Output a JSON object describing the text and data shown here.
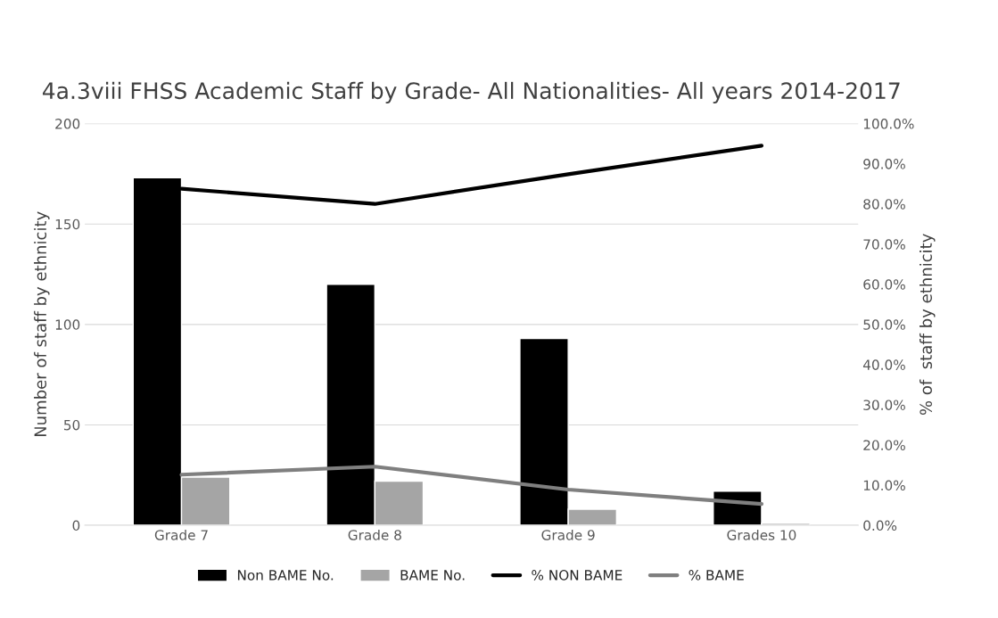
{
  "chart_data": {
    "type": "bar",
    "title": "4a.3viii FHSS Academic Staff by Grade- All Nationalities- All years 2014-2017",
    "ylabel": "Number of staff by ethnicity",
    "y2label": "% of  staff by ethnicity",
    "categories": [
      "Grade 7",
      "Grade 8",
      "Grade 9",
      "Grades 10"
    ],
    "series": [
      {
        "name": "Non BAME No.",
        "color": "#000000",
        "values": [
          173,
          120,
          93,
          17
        ]
      },
      {
        "name": "BAME No.",
        "color": "#a5a5a5",
        "values": [
          24,
          22,
          8,
          1
        ]
      },
      {
        "name": "% NON BAME",
        "type": "line",
        "axis": "y2",
        "color": "#000000",
        "values": [
          83.8,
          80.0,
          87.4,
          94.5
        ]
      },
      {
        "name": "% BAME",
        "type": "line",
        "axis": "y2",
        "color": "#7f7f7f",
        "values": [
          12.6,
          14.6,
          8.9,
          5.3
        ]
      }
    ],
    "ylim": [
      0,
      200
    ],
    "yticks": [
      0,
      50,
      100,
      150,
      200
    ],
    "y2lim": [
      0,
      100
    ],
    "y2ticks": [
      {
        "value": 0,
        "label": "0.0%"
      },
      {
        "value": 10,
        "label": "10.0%"
      },
      {
        "value": 20,
        "label": "20.0%"
      },
      {
        "value": 30,
        "label": "30.0%"
      },
      {
        "value": 40,
        "label": "40.0%"
      },
      {
        "value": 50,
        "label": "50.0%"
      },
      {
        "value": 60,
        "label": "60.0%"
      },
      {
        "value": 70,
        "label": "70.0%"
      },
      {
        "value": 80,
        "label": "80.0%"
      },
      {
        "value": 90,
        "label": "90.0%"
      },
      {
        "value": 100,
        "label": "100.0%"
      }
    ],
    "grid": "y",
    "legend": "bottom"
  }
}
